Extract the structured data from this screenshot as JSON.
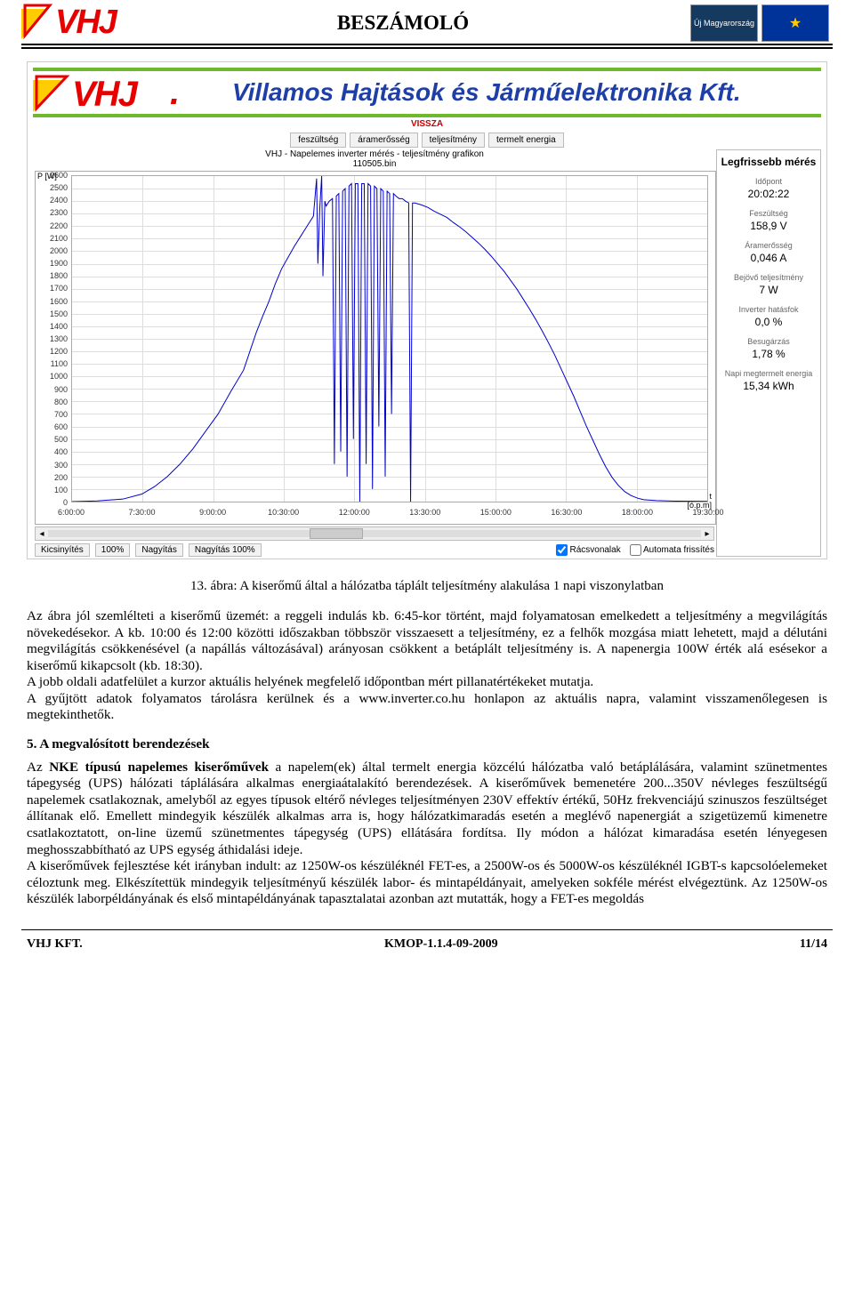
{
  "header": {
    "logo_text": "VHJ",
    "page_title": "BESZÁMOLÓ",
    "eu_badge_1": "Új Magyarország",
    "eu_badge_2": "EU"
  },
  "web_figure": {
    "logo": "VHJ",
    "company": "Villamos Hajtások és Járműelektronika Kft.",
    "vissza": "VISSZA",
    "tabs": [
      "feszültség",
      "áramerősség",
      "teljesítmény",
      "termelt energia"
    ],
    "chart_title": "VHJ - Napelemes inverter mérés - teljesítmény grafikon",
    "chart_file": "110505.bin",
    "y_label": "P [W]",
    "x_label_1": "t",
    "x_label_2": "[ó.p.m]",
    "y_max": 2600,
    "y_step": 100,
    "y_ticks": [
      2600,
      2500,
      2400,
      2300,
      2200,
      2100,
      2000,
      1900,
      1800,
      1700,
      1600,
      1500,
      1400,
      1300,
      1200,
      1100,
      1000,
      900,
      800,
      700,
      600,
      500,
      400,
      300,
      200,
      100,
      0
    ],
    "x_ticks": [
      "6:00:00",
      "7:30:00",
      "9:00:00",
      "10:30:00",
      "12:00:00",
      "13:30:00",
      "15:00:00",
      "16:30:00",
      "18:00:00",
      "19:30:00"
    ],
    "series_color": "#0000cc",
    "grid_color": "#dddddd",
    "curve": [
      [
        0,
        0
      ],
      [
        4,
        5
      ],
      [
        8,
        20
      ],
      [
        11,
        60
      ],
      [
        13,
        120
      ],
      [
        15,
        200
      ],
      [
        17,
        300
      ],
      [
        19,
        420
      ],
      [
        21,
        560
      ],
      [
        23,
        700
      ],
      [
        25,
        880
      ],
      [
        27,
        1050
      ],
      [
        28,
        1200
      ],
      [
        29,
        1350
      ],
      [
        30,
        1480
      ],
      [
        31,
        1600
      ],
      [
        32,
        1740
      ],
      [
        33,
        1860
      ],
      [
        34,
        1950
      ],
      [
        35,
        2040
      ],
      [
        36,
        2120
      ],
      [
        37,
        2200
      ],
      [
        38,
        2280
      ],
      [
        38.5,
        2580
      ],
      [
        38.7,
        1900
      ],
      [
        39,
        2340
      ],
      [
        39.3,
        2600
      ],
      [
        39.5,
        1800
      ],
      [
        39.8,
        2400
      ],
      [
        40,
        2360
      ],
      [
        40.5,
        2400
      ],
      [
        41,
        2420
      ],
      [
        41.3,
        300
      ],
      [
        41.6,
        2440
      ],
      [
        42,
        2460
      ],
      [
        42.3,
        400
      ],
      [
        42.6,
        2480
      ],
      [
        43,
        2500
      ],
      [
        43.3,
        200
      ],
      [
        43.6,
        2520
      ],
      [
        44,
        2540
      ],
      [
        44.3,
        500
      ],
      [
        44.6,
        2540
      ],
      [
        45,
        2540
      ],
      [
        45.3,
        0
      ],
      [
        45.6,
        2540
      ],
      [
        46,
        2540
      ],
      [
        46.3,
        300
      ],
      [
        46.6,
        2540
      ],
      [
        47,
        2520
      ],
      [
        47.3,
        100
      ],
      [
        47.6,
        2520
      ],
      [
        48,
        2500
      ],
      [
        48.3,
        600
      ],
      [
        48.6,
        2500
      ],
      [
        49,
        2480
      ],
      [
        49.3,
        200
      ],
      [
        49.6,
        2480
      ],
      [
        50,
        2460
      ],
      [
        50.3,
        700
      ],
      [
        50.6,
        2460
      ],
      [
        51,
        2440
      ],
      [
        51.5,
        2420
      ],
      [
        52,
        2420
      ],
      [
        52.5,
        2400
      ],
      [
        53,
        2386
      ],
      [
        53.3,
        0
      ],
      [
        53.6,
        2385
      ],
      [
        54,
        2385
      ],
      [
        55,
        2370
      ],
      [
        56,
        2350
      ],
      [
        57,
        2320
      ],
      [
        58,
        2295
      ],
      [
        59,
        2270
      ],
      [
        60,
        2230
      ],
      [
        61,
        2195
      ],
      [
        62,
        2155
      ],
      [
        63,
        2110
      ],
      [
        64,
        2065
      ],
      [
        65,
        2015
      ],
      [
        66,
        1960
      ],
      [
        67,
        1900
      ],
      [
        68,
        1840
      ],
      [
        69,
        1770
      ],
      [
        70,
        1700
      ],
      [
        71,
        1620
      ],
      [
        72,
        1540
      ],
      [
        73,
        1455
      ],
      [
        74,
        1365
      ],
      [
        75,
        1270
      ],
      [
        76,
        1170
      ],
      [
        77,
        1060
      ],
      [
        78,
        950
      ],
      [
        79,
        840
      ],
      [
        80,
        720
      ],
      [
        81,
        600
      ],
      [
        82,
        490
      ],
      [
        83,
        380
      ],
      [
        84,
        280
      ],
      [
        85,
        195
      ],
      [
        86,
        130
      ],
      [
        87,
        80
      ],
      [
        88,
        48
      ],
      [
        89,
        28
      ],
      [
        90,
        15
      ],
      [
        92,
        8
      ],
      [
        95,
        4
      ],
      [
        100,
        2
      ]
    ],
    "zoom": {
      "kicsinyites": "Kicsinyítés",
      "szaz": "100%",
      "nagyitas": "Nagyítás",
      "nagyitas100": "Nagyítás 100%",
      "racs_label": "Rácsvonalak",
      "racs_checked": true,
      "auto_label": "Automata frissítés",
      "auto_checked": false
    },
    "side": {
      "title": "Legfrissebb mérés",
      "idopont_lbl": "Időpont",
      "idopont": "20:02:22",
      "feszultseg_lbl": "Feszültség",
      "feszultseg": "158,9 V",
      "aram_lbl": "Áramerősség",
      "aram": "0,046 A",
      "bejovo_lbl": "Bejövő teljesítmény",
      "bejovo": "7 W",
      "hatasfok_lbl": "Inverter hatásfok",
      "hatasfok": "0,0 %",
      "besugarzas_lbl": "Besugárzás",
      "besugarzas": "1,78 %",
      "energia_lbl": "Napi megtermelt energia",
      "energia": "15,34 kWh"
    }
  },
  "caption": "13. ábra: A kiserőmű által a hálózatba táplált teljesítmény alakulása 1 napi viszonylatban",
  "paragraphs": {
    "p1": "Az ábra jól szemlélteti a kiserőmű üzemét: a reggeli indulás kb. 6:45-kor történt, majd folyamatosan emelkedett a teljesítmény a megvilágítás növekedésekor. A kb. 10:00 és 12:00 közötti időszakban többször visszaesett a teljesítmény, ez a felhők mozgása miatt lehetett, majd a délutáni megvilágítás csökkenésével (a napállás változásával) arányosan csökkent a betáplált teljesítmény is. A napenergia 100W érték alá esésekor a kiserőmű kikapcsolt (kb. 18:30).",
    "p2": "A jobb oldali adatfelület a kurzor aktuális helyének megfelelő időpontban mért pillanatértékeket mutatja.",
    "p3": "A gyűjtött adatok folyamatos tárolásra kerülnek és a www.inverter.co.hu honlapon az aktuális napra, valamint visszamenőlegesen is megtekinthetők.",
    "h5": "5.  A megvalósított berendezések",
    "p4a": "Az ",
    "p4b": "NKE típusú napelemes kiserőművek",
    "p4c": " a napelem(ek) által termelt energia közcélú hálózatba való betáplálására, valamint szünetmentes tápegység (UPS) hálózati táplálására alkalmas energiaátalakító berendezések. A kiserőművek bemenetére 200...350V névleges feszültségű napelemek csatlakoznak, amelyből az egyes típusok eltérő névleges teljesítményen 230V effektív értékű, 50Hz frekvenciájú szinuszos feszültséget állítanak elő. Emellett mindegyik készülék alkalmas arra is, hogy hálózatkimaradás esetén a meglévő napenergiát a szigetüzemű kimenetre csatlakoztatott, on-line üzemű szünetmentes tápegység (UPS) ellátására fordítsa. Ily módon a hálózat kimaradása esetén lényegesen meghosszabbítható az UPS egység áthidalási ideje.",
    "p5": "A kiserőművek fejlesztése két irányban indult: az 1250W-os készüléknél FET-es, a 2500W-os és 5000W-os készüléknél IGBT-s kapcsolóelemeket céloztunk meg. Elkészítettük mindegyik teljesítményű készülék labor- és mintapéldányait, amelyeken sokféle mérést elvégeztünk. Az 1250W-os készülék laborpéldányának és első mintapéldányának tapasztalatai azonban azt mutatták, hogy a FET-es megoldás"
  },
  "footer": {
    "left": "VHJ KFT.",
    "center": "KMOP-1.1.4-09-2009",
    "right": "11/14"
  }
}
